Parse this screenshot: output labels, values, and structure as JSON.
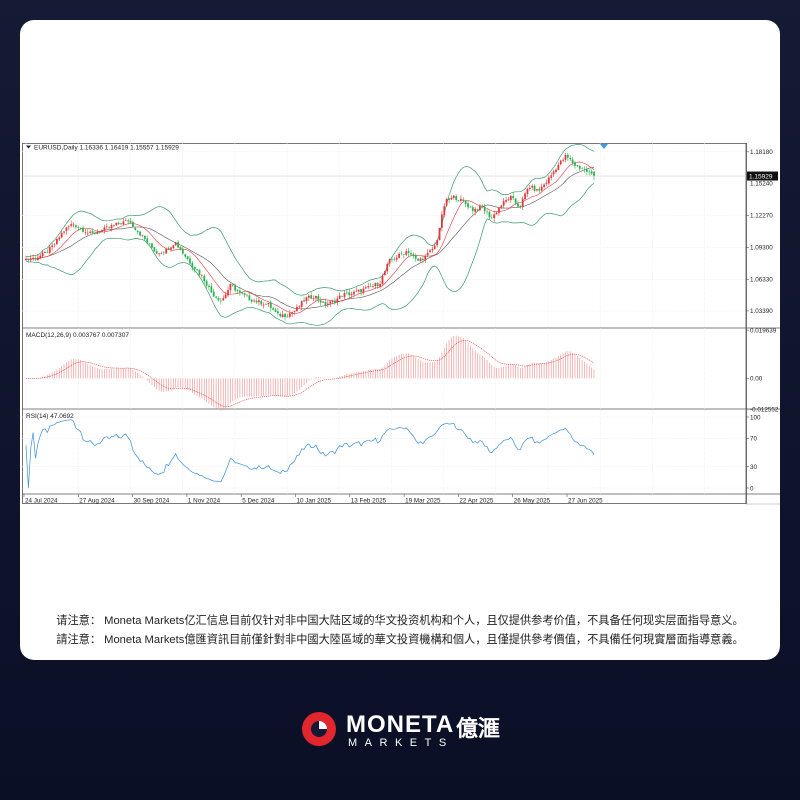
{
  "chart_data": {
    "type": "candlestick",
    "panels": [
      {
        "id": "price",
        "header": "EURUSD,Daily  1.16336 1.16419 1.15557 1.15929",
        "symbol": "EURUSD",
        "timeframe": "Daily",
        "ohlc_last": {
          "open": 1.16336,
          "high": 1.16419,
          "low": 1.15557,
          "close": 1.15929
        },
        "current_price_label": "1.15929",
        "hidden_label": "1.15240",
        "ylim": [
          1.018,
          1.19
        ],
        "yticks": [
          {
            "label": "1.18180",
            "value": 1.1818
          },
          {
            "label": "1.12270",
            "value": 1.1227
          },
          {
            "label": "1.09300",
            "value": 1.093
          },
          {
            "label": "1.06330",
            "value": 1.0633
          },
          {
            "label": "1.03390",
            "value": 1.0339
          }
        ],
        "close_anchors": [
          1.082,
          1.083,
          1.087,
          1.095,
          1.108,
          1.115,
          1.11,
          1.105,
          1.108,
          1.112,
          1.115,
          1.118,
          1.108,
          1.098,
          1.088,
          1.09,
          1.098,
          1.086,
          1.075,
          1.065,
          1.05,
          1.043,
          1.058,
          1.05,
          1.045,
          1.042,
          1.04,
          1.03,
          1.03,
          1.035,
          1.045,
          1.048,
          1.04,
          1.042,
          1.049,
          1.05,
          1.053,
          1.056,
          1.06,
          1.08,
          1.085,
          1.09,
          1.08,
          1.085,
          1.095,
          1.135,
          1.14,
          1.135,
          1.128,
          1.13,
          1.12,
          1.132,
          1.14,
          1.13,
          1.15,
          1.145,
          1.155,
          1.168,
          1.178,
          1.169,
          1.165,
          1.1593
        ],
        "indicators": [
          "Moving Average",
          "Bollinger Bands"
        ]
      },
      {
        "id": "macd",
        "header": "MACD(12,26,9) 0.003767 0.007307",
        "params": "12,26,9",
        "main": 0.003767,
        "signal": 0.007307,
        "ylim": [
          -0.0125,
          0.0197
        ],
        "yticks": [
          {
            "label": "0.019639",
            "value": 0.019639
          },
          {
            "label": "0.00",
            "value": 0.0
          },
          {
            "label": "-0.012552",
            "value": -0.012552
          }
        ]
      },
      {
        "id": "rsi",
        "header": "RSI(14) 47.0692",
        "period": 14,
        "value": 47.0692,
        "ylim": [
          0,
          100
        ],
        "yticks": [
          {
            "label": "100",
            "value": 100
          },
          {
            "label": "70",
            "value": 70
          },
          {
            "label": "30",
            "value": 30
          },
          {
            "label": "0",
            "value": 0
          }
        ]
      }
    ],
    "x_labels": [
      "24 Jul 2024",
      "27 Aug 2024",
      "30 Sep 2024",
      "1 Nov 2024",
      "5 Dec 2024",
      "10 Jan 2025",
      "13 Feb 2025",
      "19 Mar 2025",
      "22 Apr 2025",
      "26 May 2025",
      "27 Jun 2025"
    ],
    "colors": {
      "up": "#e4393c",
      "down": "#2bb24c",
      "ma1": "#e4393c",
      "ma2": "#555555",
      "bands": "#3a9a6a",
      "macd_hist": "#ef9a9a",
      "rsi": "#3a8fd6",
      "grid": "#e6e6e6"
    }
  },
  "disclaimer": {
    "simplified": "请注意： Moneta Markets亿汇信息目前仅针对非中国大陆区域的华文投资机构和个人，且仅提供参考价值，不具备任何现实层面指导意义。",
    "traditional": "請注意： Moneta Markets億匯資訊目前僅針對非中國大陸區域的華文投資機構和個人，且僅提供參考價值，不具備任何現實層面指導意義。"
  },
  "logo": {
    "name": "MONETA",
    "cjk": "億滙",
    "sub": "MARKETS",
    "accent": "#e1262d"
  }
}
